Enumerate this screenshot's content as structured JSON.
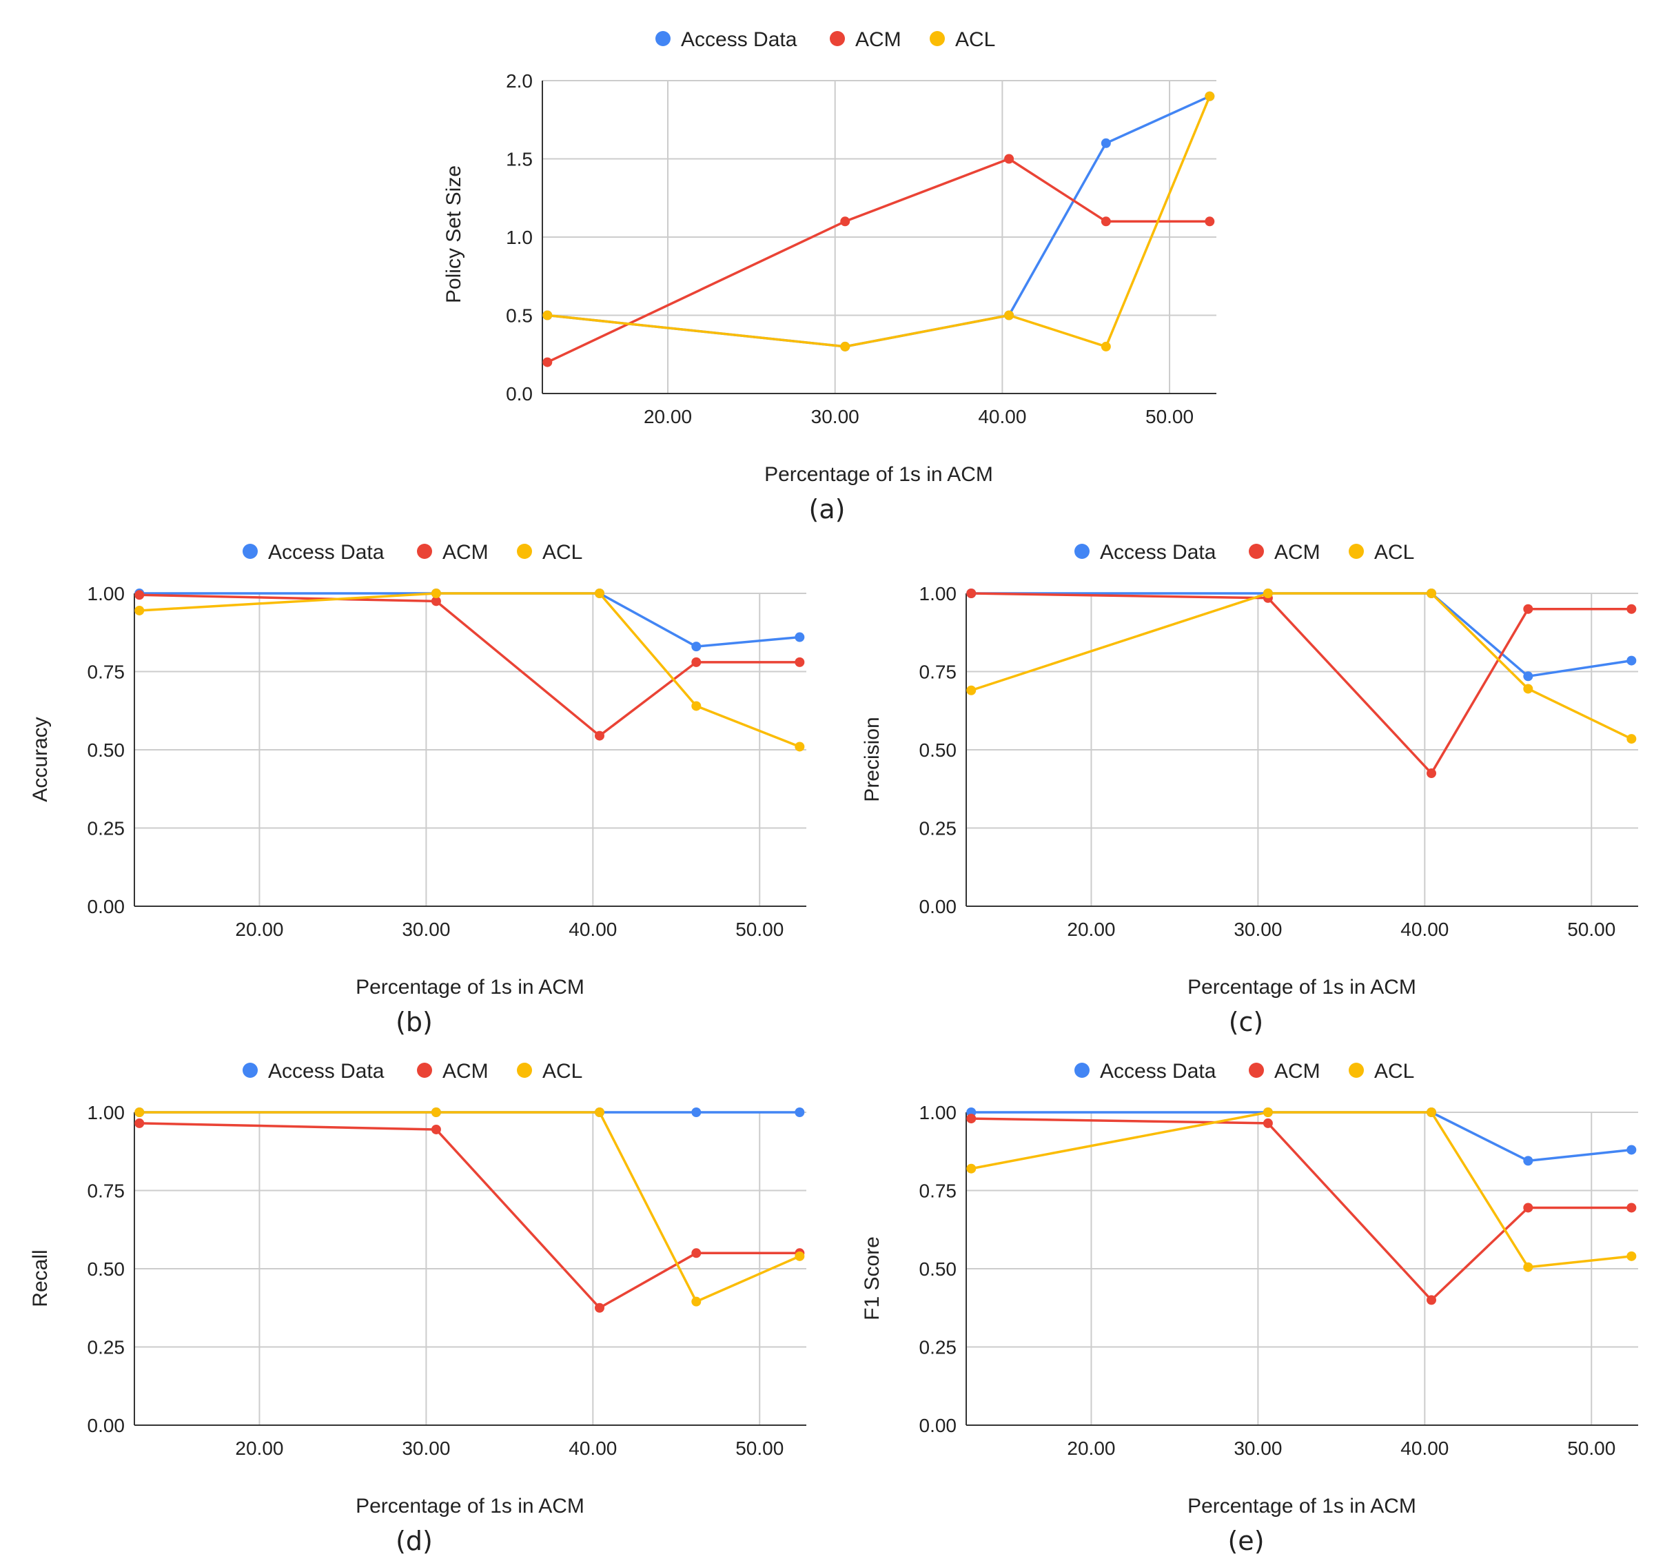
{
  "colors": {
    "access_data": "#4285F4",
    "acm": "#EA4335",
    "acl": "#FBBC04",
    "grid": "#cccccc",
    "axis": "#333333",
    "text": "#222222"
  },
  "chart_data": [
    {
      "id": "a",
      "type": "line",
      "caption": "(a)",
      "title": "",
      "xlabel": "Percentage of 1s in ACM",
      "ylabel": "Policy Set Size",
      "x": [
        12.8,
        30.6,
        40.4,
        46.2,
        52.4
      ],
      "xlim": [
        12.5,
        52.8
      ],
      "ylim": [
        0,
        2.0
      ],
      "yticks": [
        "0.0",
        "0.5",
        "1.0",
        "1.5",
        "2.0"
      ],
      "ytick_values": [
        0,
        0.5,
        1.0,
        1.5,
        2.0
      ],
      "xticks": [
        "20.00",
        "30.00",
        "40.00",
        "50.00"
      ],
      "xtick_values": [
        20,
        30,
        40,
        50
      ],
      "grid": true,
      "legend_position": "top-center",
      "series": [
        {
          "name": "Access Data",
          "color_key": "access_data",
          "values": [
            0.5,
            0.3,
            0.5,
            1.6,
            1.9
          ]
        },
        {
          "name": "ACM",
          "color_key": "acm",
          "values": [
            0.2,
            1.1,
            1.5,
            1.1,
            1.1
          ]
        },
        {
          "name": "ACL",
          "color_key": "acl",
          "values": [
            0.5,
            0.3,
            0.5,
            0.3,
            1.9
          ]
        }
      ]
    },
    {
      "id": "b",
      "type": "line",
      "caption": "(b)",
      "title": "",
      "xlabel": "Percentage of 1s in ACM",
      "ylabel": "Accuracy",
      "x": [
        12.8,
        30.6,
        40.4,
        46.2,
        52.4
      ],
      "xlim": [
        12.5,
        52.8
      ],
      "ylim": [
        0,
        1.0
      ],
      "yticks": [
        "0.00",
        "0.25",
        "0.50",
        "0.75",
        "1.00"
      ],
      "ytick_values": [
        0,
        0.25,
        0.5,
        0.75,
        1.0
      ],
      "xticks": [
        "20.00",
        "30.00",
        "40.00",
        "50.00"
      ],
      "xtick_values": [
        20,
        30,
        40,
        50
      ],
      "grid": true,
      "legend_position": "top-center",
      "series": [
        {
          "name": "Access Data",
          "color_key": "access_data",
          "values": [
            1.0,
            1.0,
            1.0,
            0.83,
            0.86
          ]
        },
        {
          "name": "ACM",
          "color_key": "acm",
          "values": [
            0.995,
            0.975,
            0.545,
            0.78,
            0.78
          ]
        },
        {
          "name": "ACL",
          "color_key": "acl",
          "values": [
            0.945,
            1.0,
            1.0,
            0.64,
            0.51
          ]
        }
      ]
    },
    {
      "id": "c",
      "type": "line",
      "caption": "(c)",
      "title": "",
      "xlabel": "Percentage of 1s in ACM",
      "ylabel": "Precision",
      "x": [
        12.8,
        30.6,
        40.4,
        46.2,
        52.4
      ],
      "xlim": [
        12.5,
        52.8
      ],
      "ylim": [
        0,
        1.0
      ],
      "yticks": [
        "0.00",
        "0.25",
        "0.50",
        "0.75",
        "1.00"
      ],
      "ytick_values": [
        0,
        0.25,
        0.5,
        0.75,
        1.0
      ],
      "xticks": [
        "20.00",
        "30.00",
        "40.00",
        "50.00"
      ],
      "xtick_values": [
        20,
        30,
        40,
        50
      ],
      "grid": true,
      "legend_position": "top-center",
      "series": [
        {
          "name": "Access Data",
          "color_key": "access_data",
          "values": [
            1.0,
            1.0,
            1.0,
            0.735,
            0.785
          ]
        },
        {
          "name": "ACM",
          "color_key": "acm",
          "values": [
            1.0,
            0.985,
            0.425,
            0.95,
            0.95
          ]
        },
        {
          "name": "ACL",
          "color_key": "acl",
          "values": [
            0.69,
            1.0,
            1.0,
            0.695,
            0.535
          ]
        }
      ]
    },
    {
      "id": "d",
      "type": "line",
      "caption": "(d)",
      "title": "",
      "xlabel": "Percentage of 1s in ACM",
      "ylabel": "Recall",
      "x": [
        12.8,
        30.6,
        40.4,
        46.2,
        52.4
      ],
      "xlim": [
        12.5,
        52.8
      ],
      "ylim": [
        0,
        1.0
      ],
      "yticks": [
        "0.00",
        "0.25",
        "0.50",
        "0.75",
        "1.00"
      ],
      "ytick_values": [
        0,
        0.25,
        0.5,
        0.75,
        1.0
      ],
      "xticks": [
        "20.00",
        "30.00",
        "40.00",
        "50.00"
      ],
      "xtick_values": [
        20,
        30,
        40,
        50
      ],
      "grid": true,
      "legend_position": "top-center",
      "series": [
        {
          "name": "Access Data",
          "color_key": "access_data",
          "values": [
            1.0,
            1.0,
            1.0,
            1.0,
            1.0
          ]
        },
        {
          "name": "ACM",
          "color_key": "acm",
          "values": [
            0.965,
            0.945,
            0.375,
            0.55,
            0.55
          ]
        },
        {
          "name": "ACL",
          "color_key": "acl",
          "values": [
            1.0,
            1.0,
            1.0,
            0.395,
            0.54
          ]
        }
      ]
    },
    {
      "id": "e",
      "type": "line",
      "caption": "(e)",
      "title": "",
      "xlabel": "Percentage of 1s in ACM",
      "ylabel": "F1 Score",
      "x": [
        12.8,
        30.6,
        40.4,
        46.2,
        52.4
      ],
      "xlim": [
        12.5,
        52.8
      ],
      "ylim": [
        0,
        1.0
      ],
      "yticks": [
        "0.00",
        "0.25",
        "0.50",
        "0.75",
        "1.00"
      ],
      "ytick_values": [
        0,
        0.25,
        0.5,
        0.75,
        1.0
      ],
      "xticks": [
        "20.00",
        "30.00",
        "40.00",
        "50.00"
      ],
      "xtick_values": [
        20,
        30,
        40,
        50
      ],
      "grid": true,
      "legend_position": "top-center",
      "series": [
        {
          "name": "Access Data",
          "color_key": "access_data",
          "values": [
            1.0,
            1.0,
            1.0,
            0.845,
            0.88
          ]
        },
        {
          "name": "ACM",
          "color_key": "acm",
          "values": [
            0.98,
            0.965,
            0.4,
            0.695,
            0.695
          ]
        },
        {
          "name": "ACL",
          "color_key": "acl",
          "values": [
            0.82,
            1.0,
            1.0,
            0.505,
            0.54
          ]
        }
      ]
    }
  ]
}
